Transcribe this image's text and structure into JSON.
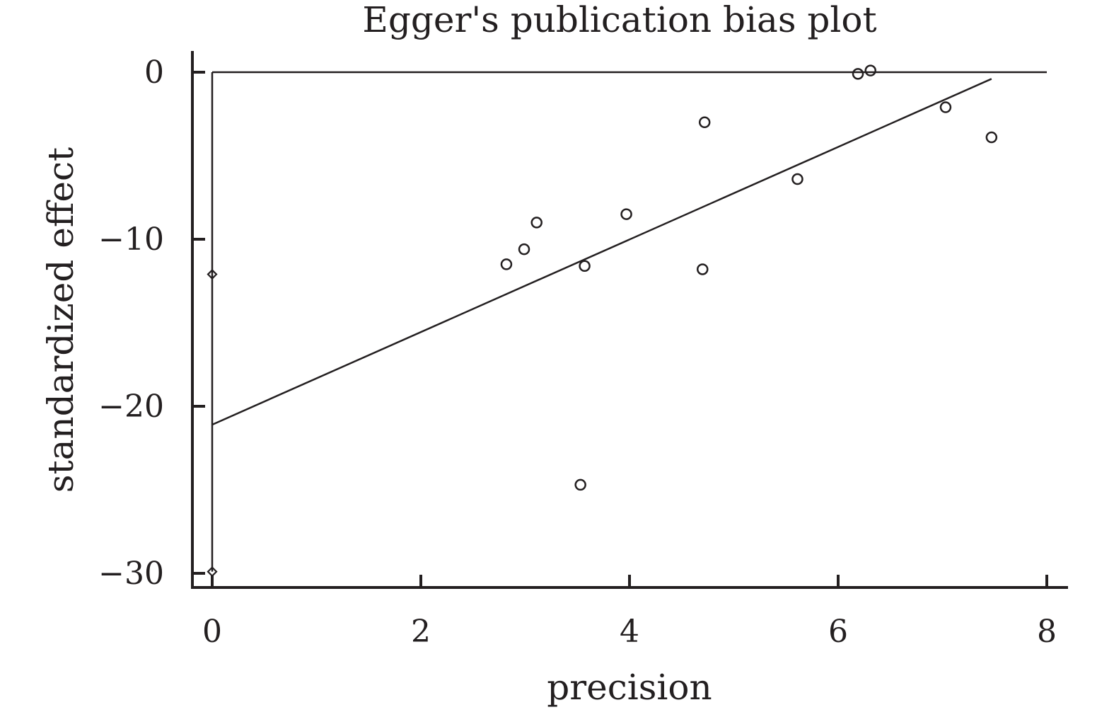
{
  "chart_data": {
    "type": "scatter",
    "title": "Egger's publication bias plot",
    "xlabel": "precision",
    "ylabel": "standardized effect",
    "xlim": [
      0,
      8
    ],
    "ylim": [
      -30,
      0
    ],
    "x_ticks": [
      0,
      2,
      4,
      6,
      8
    ],
    "x_tick_labels": [
      "0",
      "2",
      "4",
      "6",
      "8"
    ],
    "y_ticks": [
      0,
      -10,
      -20,
      -30
    ],
    "y_tick_labels": [
      "0",
      "−10",
      "−20",
      "−30"
    ],
    "grid": false,
    "reference_line_y": 0,
    "points": [
      {
        "x": 2.82,
        "y": -11.5
      },
      {
        "x": 2.99,
        "y": -10.6
      },
      {
        "x": 3.11,
        "y": -9.0
      },
      {
        "x": 3.53,
        "y": -24.7
      },
      {
        "x": 3.57,
        "y": -11.6
      },
      {
        "x": 3.97,
        "y": -8.5
      },
      {
        "x": 4.7,
        "y": -11.8
      },
      {
        "x": 4.72,
        "y": -3.0
      },
      {
        "x": 5.61,
        "y": -6.4
      },
      {
        "x": 6.19,
        "y": -0.1
      },
      {
        "x": 6.31,
        "y": 0.1
      },
      {
        "x": 7.03,
        "y": -2.1
      },
      {
        "x": 7.47,
        "y": -3.9
      }
    ],
    "fit_line": {
      "x": [
        0,
        7.47
      ],
      "y": [
        -21.1,
        -0.4
      ]
    },
    "intercept_ci": {
      "x": 0,
      "y": [
        -12.1,
        -29.9
      ]
    }
  }
}
